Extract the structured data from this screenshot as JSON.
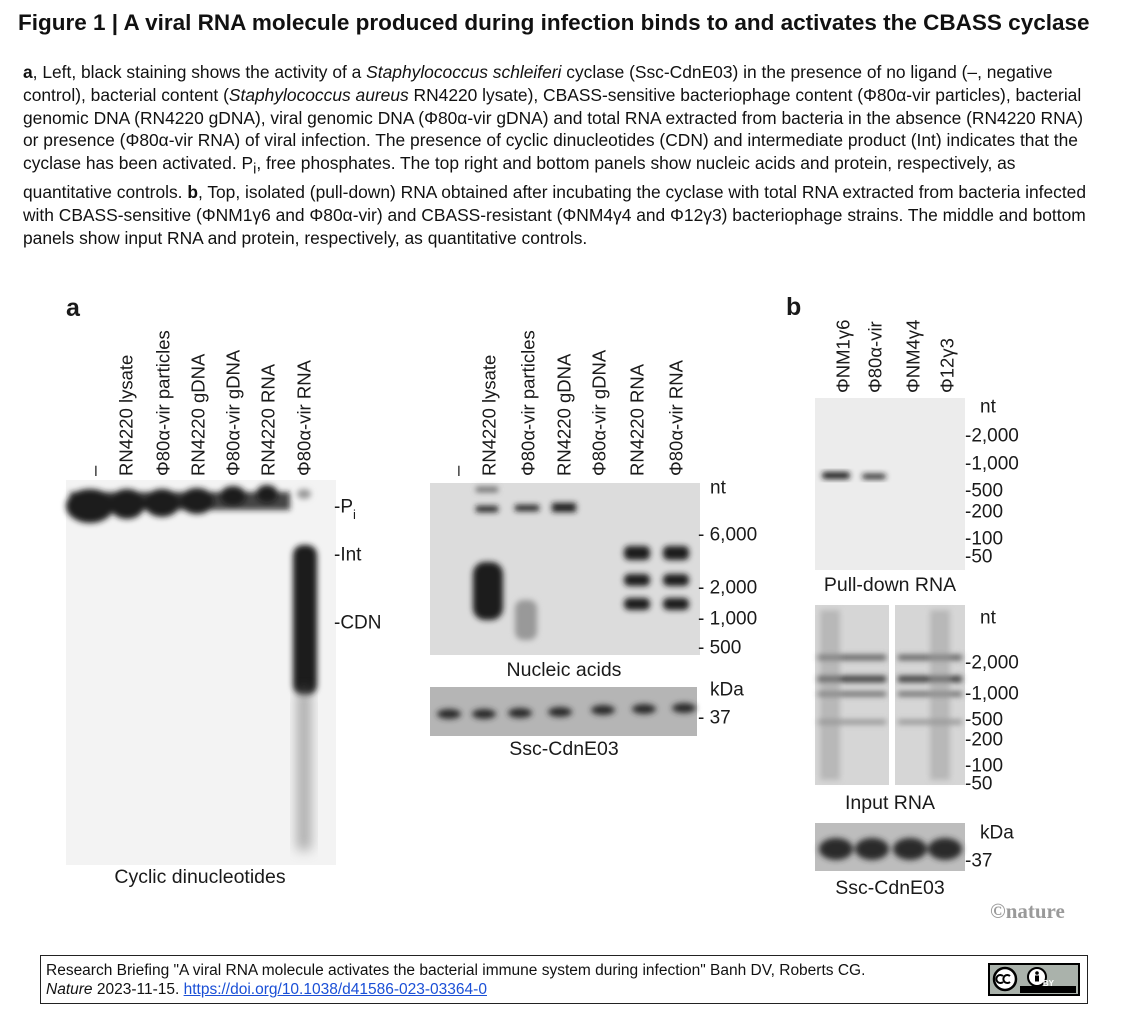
{
  "title": "Figure 1 | A viral RNA molecule produced during infection binds to and activates the CBASS cyclase",
  "caption": {
    "parts": [
      "a",
      ", Left, black staining shows the activity of a ",
      "Staphylococcus schleiferi",
      " cyclase (Ssc-CdnE03) in the presence of no ligand (–, negative control), bacterial content (",
      "Staphylococcus aureus",
      " RN4220 lysate), CBASS-sensitive bacteriophage content (Φ80α-vir particles), bacterial genomic DNA (RN4220 gDNA), viral genomic DNA (Φ80α-vir gDNA) and total RNA extracted from bacteria in the absence (RN4220 RNA) or presence (Φ80α-vir RNA) of viral infection. The presence of cyclic dinucleotides (CDN) and intermediate product (Int) indicates that the cyclase has been activated. P",
      "i",
      ", free phosphates. The top right and bottom panels show nucleic acids and protein, respectively, as quantitative controls. ",
      "b",
      ", Top, isolated (pull-down) RNA obtained after incubating the cyclase with total RNA extracted from bacteria infected with CBASS-sensitive (ΦNM1γ6 and Φ80α-vir) and CBASS-resistant (ΦNM4γ4 and Φ12γ3) bacteriophage strains. The middle and bottom panels show input RNA and protein, respectively, as quantitative controls."
    ]
  },
  "panel_a": {
    "label": "a",
    "activity_gel": {
      "lanes": [
        "–",
        "RN4220 lysate",
        "Φ80α-vir particles",
        "RN4220 gDNA",
        "Φ80α-vir gDNA",
        "RN4220 RNA",
        "Φ80α-vir RNA"
      ],
      "markers": [
        "-P",
        "-Int",
        "-CDN"
      ],
      "marker_subscript": "i",
      "caption": "Cyclic dinucleotides"
    },
    "nucleic_gel": {
      "lanes": [
        "–",
        "RN4220 lysate",
        "Φ80α-vir particles",
        "RN4220 gDNA",
        "Φ80α-vir gDNA",
        "RN4220 RNA",
        "Φ80α-vir RNA"
      ],
      "unit": "nt",
      "markers": [
        "- 6,000",
        "- 2,000",
        "- 1,000",
        "- 500"
      ],
      "caption": "Nucleic acids"
    },
    "protein_gel": {
      "unit": "kDa",
      "markers": [
        "- 37"
      ],
      "caption": "Ssc-CdnE03"
    }
  },
  "panel_b": {
    "label": "b",
    "lanes": [
      "ΦNM1γ6",
      "Φ80α-vir",
      "ΦNM4γ4",
      "Φ12γ3"
    ],
    "pulldown_gel": {
      "unit": "nt",
      "markers": [
        "-2,000",
        "-1,000",
        "-500",
        "-200",
        "-100",
        "-50"
      ],
      "caption": "Pull-down RNA"
    },
    "input_gel": {
      "unit": "nt",
      "markers": [
        "-2,000",
        "-1,000",
        "-500",
        "-200",
        "-100",
        "-50"
      ],
      "caption": "Input RNA"
    },
    "protein_gel": {
      "unit": "kDa",
      "markers": [
        "-37"
      ],
      "caption": "Ssc-CdnE03"
    }
  },
  "credit": "©nature",
  "footer": {
    "citation": "Research Briefing \"A viral RNA molecule activates the bacterial immune system during infection\" Banh DV, Roberts CG.",
    "journal": "Nature",
    "date": " 2023-11-15. ",
    "doi": "https://doi.org/10.1038/d41586-023-03364-0",
    "license": "BY"
  }
}
